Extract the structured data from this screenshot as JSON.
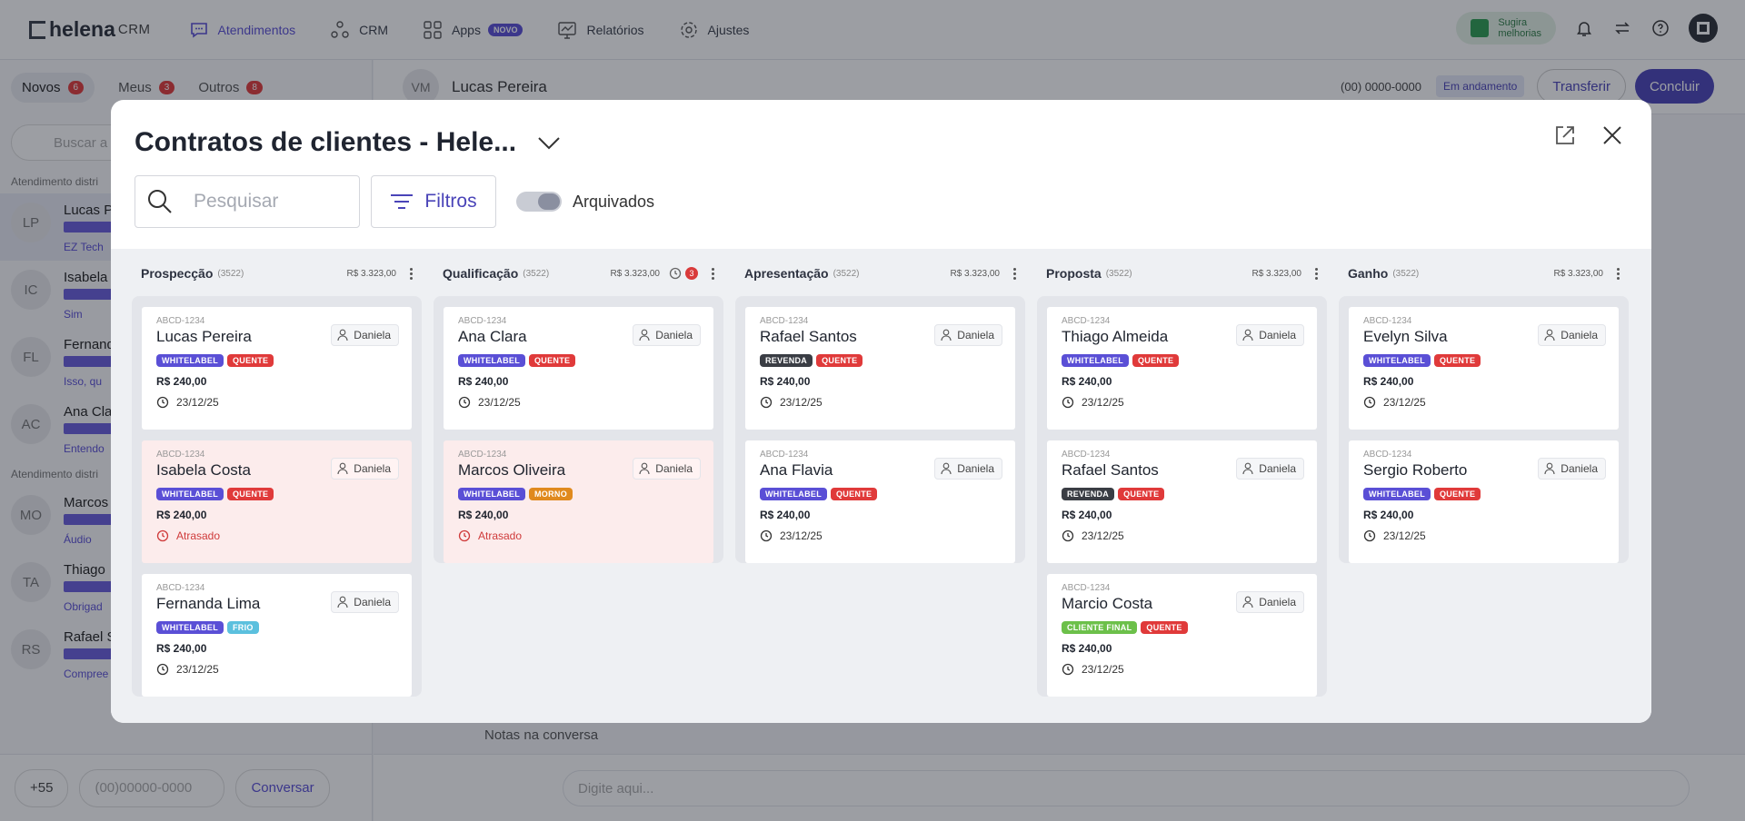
{
  "topbar": {
    "logo_main": "helena",
    "logo_sub": "CRM",
    "nav": [
      {
        "label": "Atendimentos",
        "icon": "chat-icon",
        "active": true
      },
      {
        "label": "CRM",
        "icon": "crm-icon",
        "active": false
      },
      {
        "label": "Apps",
        "icon": "apps-icon",
        "active": false,
        "badge": "NOVO"
      },
      {
        "label": "Relatórios",
        "icon": "reports-icon",
        "active": false
      },
      {
        "label": "Ajustes",
        "icon": "gear-icon",
        "active": false
      }
    ],
    "sugira_line1": "Sugira",
    "sugira_line2": "melhorias"
  },
  "left": {
    "tabs": [
      {
        "label": "Novos",
        "count": "6"
      },
      {
        "label": "Meus",
        "count": "3"
      },
      {
        "label": "Outros",
        "count": "8"
      }
    ],
    "search_placeholder": "Buscar a",
    "section1": "Atendimento distri",
    "section2": "Atendimento distri",
    "conversations": [
      {
        "initials": "LP",
        "name": "Lucas P",
        "text": "EZ Tech"
      },
      {
        "initials": "IC",
        "name": "Isabela",
        "text": "Sim"
      },
      {
        "initials": "FL",
        "name": "Fernand",
        "text": "Isso, qu"
      },
      {
        "initials": "AC",
        "name": "Ana Cla",
        "text": "Entendo"
      },
      {
        "initials": "MO",
        "name": "Marcos",
        "text": "Áudio"
      },
      {
        "initials": "TA",
        "name": "Thiago",
        "text": "Obrigad"
      },
      {
        "initials": "RS",
        "name": "Rafael S",
        "text": "Compree"
      }
    ],
    "ddi": "+55",
    "phone_placeholder": "(00)00000-0000",
    "conversar": "Conversar"
  },
  "chat": {
    "initials": "VM",
    "name": "Lucas Pereira",
    "phone": "(00) 0000-0000",
    "status": "Em andamento",
    "transferir": "Transferir",
    "concluir": "Concluir",
    "notas": "Notas na conversa",
    "placeholder": "Digite aqui..."
  },
  "modal": {
    "title": "Contratos de clientes - Hele...",
    "search_placeholder": "Pesquisar",
    "filtros": "Filtros",
    "archived_label": "Arquivados",
    "columns": [
      {
        "name": "Prospecção",
        "count": "(3522)",
        "sum": "R$ 3.323,00",
        "alert": null,
        "cards": [
          {
            "code": "ABCD-1234",
            "name": "Lucas Pereira",
            "owner": "Daniela",
            "tags": [
              "WHITELABEL",
              "QUENTE"
            ],
            "price": "R$ 240,00",
            "date": "23/12/25",
            "late": false
          },
          {
            "code": "ABCD-1234",
            "name": "Isabela Costa",
            "owner": "Daniela",
            "tags": [
              "WHITELABEL",
              "QUENTE"
            ],
            "price": "R$ 240,00",
            "date": "Atrasado",
            "late": true
          },
          {
            "code": "ABCD-1234",
            "name": "Fernanda Lima",
            "owner": "Daniela",
            "tags": [
              "WHITELABEL",
              "FRIO"
            ],
            "price": "R$ 240,00",
            "date": "23/12/25",
            "late": false
          }
        ]
      },
      {
        "name": "Qualificação",
        "count": "(3522)",
        "sum": "R$ 3.323,00",
        "alert": "3",
        "cards": [
          {
            "code": "ABCD-1234",
            "name": "Ana Clara",
            "owner": "Daniela",
            "tags": [
              "WHITELABEL",
              "QUENTE"
            ],
            "price": "R$ 240,00",
            "date": "23/12/25",
            "late": false
          },
          {
            "code": "ABCD-1234",
            "name": "Marcos Oliveira",
            "owner": "Daniela",
            "tags": [
              "WHITELABEL",
              "MORNO"
            ],
            "price": "R$ 240,00",
            "date": "Atrasado",
            "late": true
          }
        ]
      },
      {
        "name": "Apresentação",
        "count": "(3522)",
        "sum": "R$ 3.323,00",
        "alert": null,
        "cards": [
          {
            "code": "ABCD-1234",
            "name": "Rafael Santos",
            "owner": "Daniela",
            "tags": [
              "REVENDA",
              "QUENTE"
            ],
            "price": "R$ 240,00",
            "date": "23/12/25",
            "late": false
          },
          {
            "code": "ABCD-1234",
            "name": "Ana Flavia",
            "owner": "Daniela",
            "tags": [
              "WHITELABEL",
              "QUENTE"
            ],
            "price": "R$ 240,00",
            "date": "23/12/25",
            "late": false
          }
        ]
      },
      {
        "name": "Proposta",
        "count": "(3522)",
        "sum": "R$ 3.323,00",
        "alert": null,
        "cards": [
          {
            "code": "ABCD-1234",
            "name": "Thiago Almeida",
            "owner": "Daniela",
            "tags": [
              "WHITELABEL",
              "QUENTE"
            ],
            "price": "R$ 240,00",
            "date": "23/12/25",
            "late": false
          },
          {
            "code": "ABCD-1234",
            "name": "Rafael Santos",
            "owner": "Daniela",
            "tags": [
              "REVENDA",
              "QUENTE"
            ],
            "price": "R$ 240,00",
            "date": "23/12/25",
            "late": false
          },
          {
            "code": "ABCD-1234",
            "name": "Marcio Costa",
            "owner": "Daniela",
            "tags": [
              "CLIENTE FINAL",
              "QUENTE"
            ],
            "price": "R$ 240,00",
            "date": "23/12/25",
            "late": false
          }
        ]
      },
      {
        "name": "Ganho",
        "count": "(3522)",
        "sum": "R$ 3.323,00",
        "alert": null,
        "cards": [
          {
            "code": "ABCD-1234",
            "name": "Evelyn Silva",
            "owner": "Daniela",
            "tags": [
              "WHITELABEL",
              "QUENTE"
            ],
            "price": "R$ 240,00",
            "date": "23/12/25",
            "late": false
          },
          {
            "code": "ABCD-1234",
            "name": "Sergio Roberto",
            "owner": "Daniela",
            "tags": [
              "WHITELABEL",
              "QUENTE"
            ],
            "price": "R$ 240,00",
            "date": "23/12/25",
            "late": false
          }
        ]
      }
    ]
  },
  "tag_colors": {
    "WHITELABEL": "#5a4fd6",
    "QUENTE": "#e03a3a",
    "FRIO": "#5bc0de",
    "MORNO": "#e08a1e",
    "REVENDA": "#3a3d44",
    "CLIENTE FINAL": "#6cc04a"
  }
}
